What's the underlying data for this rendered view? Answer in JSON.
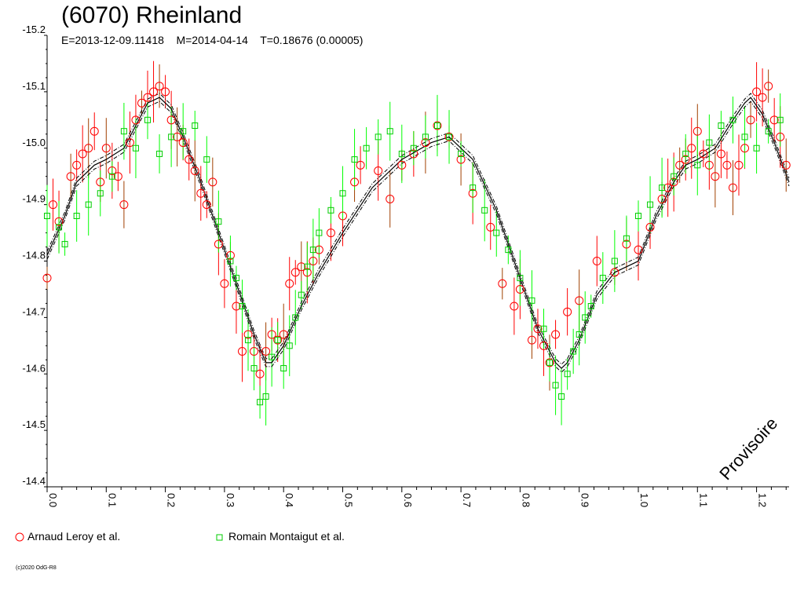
{
  "header": {
    "title": "(6070) Rheinland",
    "subtitle": "E=2013-12-09.11418    M=2014-04-14    T=0.18676 (0.00005)"
  },
  "stamp": "Provisoire",
  "copyright": "(c)2020 OdG-R8",
  "colors": {
    "series_red": "#ff0000",
    "series_green": "#00ff00",
    "errorbar_dark": "#a04000",
    "model": "#000000"
  },
  "chart_data": {
    "type": "scatter",
    "title": "(6070) Rheinland",
    "x_ticks": [
      "0.0",
      "0.1",
      "0.2",
      "0.3",
      "0.4",
      "0.5",
      "0.6",
      "0.7",
      "0.8",
      "0.9",
      "1.0",
      "1.1",
      "1.2"
    ],
    "y_ticks": [
      "-15.2",
      "-15.1",
      "-15.0",
      "-14.9",
      "-14.8",
      "-14.7",
      "-14.6",
      "-14.5",
      "-14.4"
    ],
    "xlim": [
      0.0,
      1.255
    ],
    "ylim": [
      -15.2,
      -14.4
    ],
    "y_inverted": true,
    "grid": false,
    "legend_position": "bottom-left",
    "model": {
      "style": "solid curve with dash-dot envelopes",
      "x": [
        0.0,
        0.03,
        0.05,
        0.08,
        0.1,
        0.13,
        0.15,
        0.17,
        0.19,
        0.21,
        0.23,
        0.26,
        0.29,
        0.32,
        0.35,
        0.37,
        0.38,
        0.4,
        0.43,
        0.46,
        0.5,
        0.55,
        0.6,
        0.65,
        0.68,
        0.72,
        0.76,
        0.8,
        0.83,
        0.86,
        0.87,
        0.88,
        0.9,
        0.93,
        0.96,
        1.0,
        1.03,
        1.06,
        1.08,
        1.1,
        1.13,
        1.16,
        1.18,
        1.19,
        1.21,
        1.23,
        1.255
      ],
      "y": [
        -14.81,
        -14.88,
        -14.94,
        -14.97,
        -14.98,
        -15.0,
        -15.04,
        -15.08,
        -15.09,
        -15.07,
        -15.02,
        -14.94,
        -14.85,
        -14.76,
        -14.67,
        -14.62,
        -14.62,
        -14.65,
        -14.72,
        -14.78,
        -14.85,
        -14.93,
        -14.98,
        -15.01,
        -15.02,
        -14.98,
        -14.89,
        -14.77,
        -14.68,
        -14.62,
        -14.61,
        -14.62,
        -14.66,
        -14.74,
        -14.78,
        -14.8,
        -14.88,
        -14.94,
        -14.97,
        -14.98,
        -15.0,
        -15.05,
        -15.08,
        -15.09,
        -15.06,
        -15.01,
        -14.94
      ],
      "envelope": 0.007
    },
    "series": [
      {
        "name": "Arnaud Leroy et al.",
        "marker": "circle",
        "color": "#ff0000",
        "x": [
          0.0,
          0.01,
          0.02,
          0.04,
          0.05,
          0.06,
          0.07,
          0.08,
          0.09,
          0.1,
          0.11,
          0.12,
          0.13,
          0.14,
          0.15,
          0.16,
          0.17,
          0.18,
          0.19,
          0.2,
          0.21,
          0.22,
          0.23,
          0.24,
          0.25,
          0.26,
          0.27,
          0.28,
          0.29,
          0.3,
          0.31,
          0.32,
          0.33,
          0.34,
          0.35,
          0.36,
          0.37,
          0.38,
          0.39,
          0.4,
          0.41,
          0.42,
          0.43,
          0.44,
          0.45,
          0.46,
          0.48,
          0.5,
          0.52,
          0.53,
          0.56,
          0.58,
          0.6,
          0.62,
          0.64,
          0.66,
          0.68,
          0.7,
          0.72,
          0.75,
          0.77,
          0.79,
          0.8,
          0.82,
          0.83,
          0.84,
          0.85,
          0.86,
          0.88,
          0.9,
          0.93,
          0.96,
          0.98,
          1.0,
          1.02,
          1.04,
          1.05,
          1.06,
          1.07,
          1.08,
          1.09,
          1.1,
          1.11,
          1.12,
          1.13,
          1.14,
          1.15,
          1.16,
          1.17,
          1.18,
          1.19,
          1.2,
          1.21,
          1.22,
          1.23,
          1.24,
          1.25
        ],
        "y": [
          -14.77,
          -14.9,
          -14.87,
          -14.95,
          -14.97,
          -14.99,
          -15.0,
          -15.03,
          -14.94,
          -15.0,
          -14.96,
          -14.95,
          -14.9,
          -15.01,
          -15.05,
          -15.08,
          -15.09,
          -15.1,
          -15.11,
          -15.1,
          -15.05,
          -15.02,
          -15.01,
          -14.98,
          -14.96,
          -14.92,
          -14.9,
          -14.94,
          -14.83,
          -14.76,
          -14.81,
          -14.72,
          -14.64,
          -14.67,
          -14.64,
          -14.6,
          -14.64,
          -14.67,
          -14.66,
          -14.67,
          -14.76,
          -14.78,
          -14.79,
          -14.78,
          -14.8,
          -14.82,
          -14.85,
          -14.88,
          -14.94,
          -14.97,
          -14.96,
          -14.91,
          -14.97,
          -14.99,
          -15.01,
          -15.04,
          -15.02,
          -14.98,
          -14.92,
          -14.86,
          -14.76,
          -14.72,
          -14.75,
          -14.66,
          -14.68,
          -14.65,
          -14.62,
          -14.67,
          -14.71,
          -14.73,
          -14.8,
          -14.78,
          -14.83,
          -14.82,
          -14.86,
          -14.91,
          -14.93,
          -14.94,
          -14.97,
          -14.98,
          -15.0,
          -15.03,
          -14.99,
          -14.97,
          -14.95,
          -14.99,
          -14.97,
          -14.93,
          -14.97,
          -15.0,
          -15.05,
          -15.1,
          -15.09,
          -15.11,
          -15.05,
          -15.02,
          -14.97
        ]
      },
      {
        "name": "Romain Montaigut et al.",
        "marker": "square",
        "color": "#00ff00",
        "x": [
          0.0,
          0.02,
          0.03,
          0.05,
          0.07,
          0.09,
          0.11,
          0.13,
          0.15,
          0.17,
          0.19,
          0.21,
          0.23,
          0.25,
          0.27,
          0.29,
          0.31,
          0.32,
          0.33,
          0.34,
          0.35,
          0.36,
          0.37,
          0.38,
          0.39,
          0.4,
          0.41,
          0.42,
          0.43,
          0.44,
          0.45,
          0.46,
          0.48,
          0.5,
          0.52,
          0.54,
          0.56,
          0.58,
          0.6,
          0.62,
          0.64,
          0.66,
          0.68,
          0.7,
          0.72,
          0.74,
          0.76,
          0.78,
          0.8,
          0.82,
          0.84,
          0.85,
          0.86,
          0.87,
          0.88,
          0.89,
          0.9,
          0.91,
          0.92,
          0.94,
          0.96,
          0.98,
          1.0,
          1.02,
          1.04,
          1.06,
          1.08,
          1.1,
          1.12,
          1.14,
          1.16,
          1.18,
          1.2,
          1.22,
          1.24
        ],
        "y": [
          -14.88,
          -14.86,
          -14.83,
          -14.88,
          -14.9,
          -14.92,
          -14.95,
          -15.03,
          -15.0,
          -15.05,
          -14.99,
          -15.02,
          -15.03,
          -15.04,
          -14.98,
          -14.87,
          -14.8,
          -14.77,
          -14.72,
          -14.66,
          -14.61,
          -14.55,
          -14.56,
          -14.63,
          -14.66,
          -14.61,
          -14.65,
          -14.7,
          -14.74,
          -14.79,
          -14.82,
          -14.85,
          -14.89,
          -14.92,
          -14.98,
          -15.0,
          -15.02,
          -15.03,
          -14.99,
          -15.0,
          -15.02,
          -15.04,
          -15.02,
          -14.99,
          -14.93,
          -14.89,
          -14.85,
          -14.82,
          -14.77,
          -14.73,
          -14.68,
          -14.62,
          -14.58,
          -14.56,
          -14.6,
          -14.64,
          -14.67,
          -14.7,
          -14.72,
          -14.77,
          -14.8,
          -14.84,
          -14.88,
          -14.9,
          -14.93,
          -14.95,
          -14.99,
          -14.97,
          -15.01,
          -15.04,
          -15.05,
          -15.02,
          -15.0,
          -15.03,
          -15.05
        ]
      }
    ]
  }
}
